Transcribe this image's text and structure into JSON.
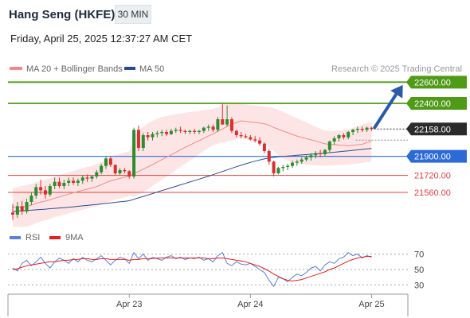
{
  "header": {
    "title": "Hang Seng (HKFE)",
    "timeframe": "30 MIN",
    "datetime": "Friday, April 25, 2025 12:37:27 AM CET"
  },
  "legend": {
    "items": [
      {
        "label": "MA 20 + Bollinger Bands",
        "color": "#f08a8a"
      },
      {
        "label": "MA 50",
        "color": "#2b4c8c"
      }
    ],
    "credit": "Research © 2025 Trading Central"
  },
  "rsi_legend": {
    "items": [
      {
        "label": "RSI",
        "color": "#5b7fd6"
      },
      {
        "label": "9MA",
        "color": "#e02020"
      }
    ]
  },
  "chart_data": [
    {
      "type": "candlestick",
      "instrument": "Hang Seng (HKFE)",
      "interval": "30 MIN",
      "ylim": [
        21290,
        22640
      ],
      "current_price": 22158,
      "levels": [
        {
          "value": 22600,
          "label": "22600.00",
          "kind": "resistance",
          "color": "#4f9a17"
        },
        {
          "value": 22400,
          "label": "22400.00",
          "kind": "resistance",
          "color": "#4f9a17"
        },
        {
          "value": 21900,
          "label": "21900.00",
          "kind": "pivot",
          "color": "#2c6bd6"
        },
        {
          "value": 21720,
          "label": "21720.00",
          "kind": "support",
          "color": "#e04040"
        },
        {
          "value": 21560,
          "label": "21560.00",
          "kind": "support",
          "color": "#e04040"
        }
      ],
      "price_label": "22158.00",
      "x_ticks": [
        "Apr 23",
        "Apr 24",
        "Apr 25"
      ],
      "tick_bar_index": [
        25,
        51,
        77
      ],
      "bar_count": 78,
      "ohlc": [
        [
          21370,
          21450,
          21300,
          21350
        ],
        [
          21350,
          21470,
          21320,
          21430
        ],
        [
          21430,
          21480,
          21350,
          21380
        ],
        [
          21380,
          21500,
          21360,
          21470
        ],
        [
          21470,
          21560,
          21440,
          21530
        ],
        [
          21530,
          21640,
          21500,
          21610
        ],
        [
          21610,
          21680,
          21540,
          21580
        ],
        [
          21580,
          21620,
          21500,
          21540
        ],
        [
          21540,
          21640,
          21520,
          21620
        ],
        [
          21620,
          21700,
          21590,
          21660
        ],
        [
          21660,
          21700,
          21600,
          21620
        ],
        [
          21620,
          21680,
          21590,
          21650
        ],
        [
          21650,
          21700,
          21620,
          21670
        ],
        [
          21670,
          21700,
          21630,
          21650
        ],
        [
          21650,
          21690,
          21620,
          21670
        ],
        [
          21670,
          21720,
          21640,
          21700
        ],
        [
          21700,
          21730,
          21660,
          21690
        ],
        [
          21690,
          21720,
          21660,
          21710
        ],
        [
          21710,
          21770,
          21690,
          21750
        ],
        [
          21750,
          21830,
          21730,
          21810
        ],
        [
          21810,
          21900,
          21780,
          21880
        ],
        [
          21880,
          21900,
          21800,
          21820
        ],
        [
          21820,
          21820,
          21720,
          21740
        ],
        [
          21740,
          21790,
          21720,
          21770
        ],
        [
          21770,
          21790,
          21740,
          21760
        ],
        [
          21760,
          21770,
          21690,
          21710
        ],
        [
          21710,
          22170,
          21690,
          22150
        ],
        [
          22150,
          22190,
          21950,
          21980
        ],
        [
          21980,
          22120,
          21950,
          22100
        ],
        [
          22100,
          22130,
          22050,
          22080
        ],
        [
          22080,
          22130,
          22050,
          22110
        ],
        [
          22110,
          22140,
          22080,
          22120
        ],
        [
          22120,
          22150,
          22090,
          22130
        ],
        [
          22130,
          22150,
          22090,
          22110
        ],
        [
          22110,
          22160,
          22100,
          22140
        ],
        [
          22140,
          22170,
          22120,
          22150
        ],
        [
          22150,
          22180,
          22120,
          22140
        ],
        [
          22140,
          22150,
          22110,
          22130
        ],
        [
          22130,
          22150,
          22110,
          22140
        ],
        [
          22140,
          22160,
          22110,
          22130
        ],
        [
          22130,
          22150,
          22110,
          22140
        ],
        [
          22140,
          22180,
          22120,
          22170
        ],
        [
          22170,
          22200,
          22140,
          22180
        ],
        [
          22180,
          22200,
          22130,
          22150
        ],
        [
          22150,
          22270,
          22130,
          22250
        ],
        [
          22250,
          22400,
          22200,
          22200
        ],
        [
          22200,
          22380,
          22180,
          22250
        ],
        [
          22250,
          22270,
          22120,
          22140
        ],
        [
          22140,
          22150,
          22080,
          22100
        ],
        [
          22100,
          22130,
          22070,
          22090
        ],
        [
          22090,
          22110,
          22070,
          22080
        ],
        [
          22080,
          22100,
          22050,
          22060
        ],
        [
          22060,
          22090,
          22030,
          22050
        ],
        [
          22050,
          22080,
          22000,
          22020
        ],
        [
          22020,
          22030,
          21930,
          21950
        ],
        [
          21950,
          21970,
          21820,
          21850
        ],
        [
          21850,
          21860,
          21710,
          21740
        ],
        [
          21740,
          21800,
          21730,
          21790
        ],
        [
          21790,
          21820,
          21760,
          21800
        ],
        [
          21800,
          21830,
          21770,
          21810
        ],
        [
          21810,
          21860,
          21790,
          21840
        ],
        [
          21840,
          21870,
          21810,
          21850
        ],
        [
          21850,
          21890,
          21830,
          21870
        ],
        [
          21870,
          21910,
          21850,
          21890
        ],
        [
          21890,
          21930,
          21860,
          21910
        ],
        [
          21910,
          21950,
          21880,
          21930
        ],
        [
          21930,
          21960,
          21890,
          21920
        ],
        [
          21920,
          21970,
          21900,
          21960
        ],
        [
          21960,
          22050,
          21940,
          22040
        ],
        [
          22040,
          22090,
          22010,
          22070
        ],
        [
          22070,
          22110,
          22040,
          22100
        ],
        [
          22100,
          22120,
          22060,
          22080
        ],
        [
          22080,
          22140,
          22060,
          22130
        ],
        [
          22130,
          22160,
          22100,
          22150
        ],
        [
          22150,
          22180,
          22120,
          22160
        ],
        [
          22160,
          22180,
          22130,
          22150
        ],
        [
          22150,
          22180,
          22130,
          22170
        ],
        [
          22170,
          22180,
          22140,
          22158
        ]
      ],
      "ma20": [
        21420,
        21420,
        21421,
        21428,
        21440,
        21456,
        21469,
        21478,
        21490,
        21505,
        21518,
        21530,
        21543,
        21556,
        21568,
        21580,
        21591,
        21602,
        21615,
        21632,
        21652,
        21669,
        21680,
        21692,
        21704,
        21713,
        21738,
        21757,
        21779,
        21800,
        21822,
        21846,
        21870,
        21892,
        21915,
        21938,
        21962,
        21985,
        22006,
        22027,
        22048,
        22069,
        22092,
        22111,
        22137,
        22158,
        22183,
        22203,
        22219,
        22235,
        22230,
        22224,
        22220,
        22215,
        22207,
        22193,
        22173,
        22156,
        22139,
        22123,
        22107,
        22092,
        22080,
        22068,
        22056,
        22045,
        22031,
        22018,
        22013,
        22011,
        22007,
        22003,
        21999,
        22004,
        22009,
        22014,
        22030,
        22044
      ],
      "ma50": [
        21380,
        21383,
        21386,
        21389,
        21392,
        21396,
        21399,
        21402,
        21406,
        21409,
        21413,
        21416,
        21420,
        21424,
        21429,
        21433,
        21437,
        21442,
        21446,
        21451,
        21456,
        21461,
        21466,
        21471,
        21476,
        21481,
        21495,
        21508,
        21522,
        21535,
        21549,
        21563,
        21577,
        21590,
        21604,
        21617,
        21631,
        21644,
        21658,
        21671,
        21685,
        21699,
        21713,
        21727,
        21742,
        21757,
        21772,
        21787,
        21802,
        21816,
        21830,
        21843,
        21855,
        21866,
        21876,
        21884,
        21890,
        21895,
        21899,
        21903,
        21906,
        21910,
        21913,
        21917,
        21920,
        21924,
        21927,
        21931,
        21935,
        21939,
        21943,
        21948,
        21952,
        21957,
        21961,
        21966,
        21970,
        21975
      ],
      "bollinger_upper": [
        21600,
        21610,
        21620,
        21630,
        21640,
        21655,
        21668,
        21678,
        21692,
        21708,
        21722,
        21735,
        21748,
        21762,
        21775,
        21788,
        21800,
        21812,
        21826,
        21846,
        21872,
        21895,
        21910,
        21924,
        21937,
        21948,
        22080,
        22140,
        22180,
        22210,
        22235,
        22255,
        22270,
        22280,
        22290,
        22298,
        22305,
        22312,
        22318,
        22324,
        22330,
        22336,
        22342,
        22348,
        22360,
        22385,
        22400,
        22405,
        22400,
        22395,
        22390,
        22385,
        22380,
        22375,
        22370,
        22365,
        22355,
        22340,
        22320,
        22300,
        22280,
        22260,
        22240,
        22220,
        22200,
        22180,
        22160,
        22145,
        22140,
        22140,
        22145,
        22150,
        22155,
        22170,
        22185,
        22200,
        22215,
        22225
      ],
      "bollinger_lower": [
        21240,
        21235,
        21232,
        21236,
        21250,
        21270,
        21285,
        21295,
        21310,
        21325,
        21338,
        21350,
        21362,
        21374,
        21385,
        21397,
        21408,
        21418,
        21430,
        21445,
        21462,
        21478,
        21490,
        21502,
        21515,
        21525,
        21520,
        21540,
        21565,
        21590,
        21620,
        21650,
        21680,
        21710,
        21740,
        21770,
        21800,
        21830,
        21860,
        21890,
        21920,
        21950,
        21980,
        22005,
        22020,
        22030,
        22040,
        22050,
        22060,
        22070,
        22060,
        22050,
        22040,
        22030,
        22020,
        21990,
        21950,
        21910,
        21880,
        21860,
        21840,
        21830,
        21825,
        21820,
        21818,
        21815,
        21812,
        21810,
        21812,
        21815,
        21818,
        21820,
        21822,
        21828,
        21833,
        21838,
        21845,
        21850
      ]
    },
    {
      "type": "line",
      "name": "RSI",
      "ylim": [
        18,
        82
      ],
      "y_ticks": [
        70,
        50,
        30
      ],
      "series": [
        {
          "name": "RSI",
          "color": "#5b7fd6",
          "values": [
            52,
            48,
            58,
            62,
            55,
            60,
            66,
            58,
            52,
            60,
            65,
            62,
            58,
            64,
            60,
            66,
            62,
            60,
            64,
            68,
            62,
            56,
            62,
            66,
            64,
            58,
            72,
            64,
            70,
            62,
            66,
            64,
            62,
            66,
            68,
            64,
            66,
            63,
            65,
            64,
            66,
            62,
            64,
            60,
            68,
            72,
            58,
            55,
            60,
            57,
            56,
            58,
            54,
            50,
            46,
            36,
            28,
            40,
            38,
            34,
            40,
            44,
            42,
            46,
            52,
            54,
            48,
            56,
            60,
            58,
            64,
            66,
            72,
            68,
            70,
            65,
            68,
            66
          ]
        },
        {
          "name": "9MA",
          "color": "#e02020",
          "values": [
            50,
            51,
            53,
            55,
            56,
            57,
            58,
            59,
            60,
            60,
            61,
            62,
            62,
            63,
            63,
            64,
            64,
            63,
            63,
            64,
            64,
            63,
            63,
            63,
            63,
            62,
            63,
            63,
            64,
            64,
            64,
            65,
            65,
            65,
            65,
            65,
            65,
            65,
            65,
            65,
            65,
            65,
            64,
            64,
            65,
            65,
            64,
            63,
            62,
            61,
            60,
            58,
            56,
            54,
            51,
            48,
            44,
            41,
            38,
            36,
            35,
            36,
            37,
            39,
            41,
            43,
            45,
            47,
            50,
            52,
            55,
            58,
            61,
            63,
            65,
            66,
            67,
            67
          ]
        }
      ]
    }
  ]
}
